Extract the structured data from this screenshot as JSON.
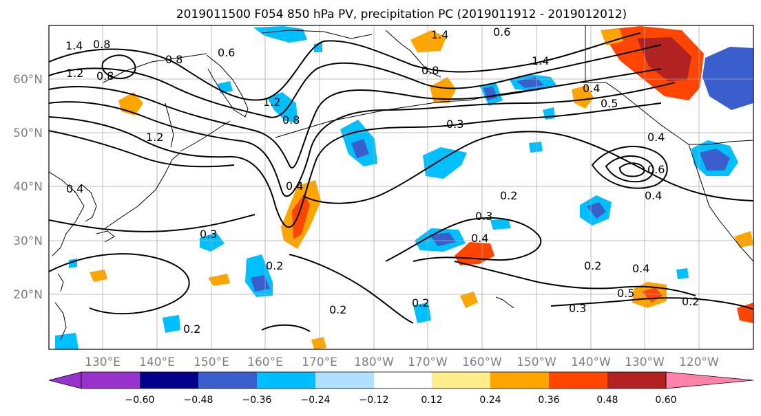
{
  "title": "2019011500 F054 850 hPa PV, precipitation PC (2019011912 - 2019012012)",
  "axes": {
    "lat_labels": [
      "60°N",
      "50°N",
      "40°N",
      "30°N",
      "20°N"
    ],
    "lon_labels": [
      "130°E",
      "140°E",
      "150°E",
      "160°E",
      "170°E",
      "180°W",
      "170°W",
      "160°W",
      "150°W",
      "140°W",
      "130°W",
      "120°W"
    ]
  },
  "colorbar": {
    "ticks": [
      "−0.60",
      "−0.48",
      "−0.36",
      "−0.24",
      "−0.12",
      "0.12",
      "0.24",
      "0.36",
      "0.48",
      "0.60"
    ],
    "colors": [
      "#9932CC",
      "#00008B",
      "#3A5FCD",
      "#00BFFF",
      "#B0E2FF",
      "#FFFFFF",
      "#FFEC8B",
      "#FFA500",
      "#FF4500",
      "#B22222",
      "#FF82AB"
    ]
  },
  "contour_labels": [
    "1.4",
    "0.8",
    "0.8",
    "0.6",
    "0.8",
    "1.2",
    "0.8",
    "1.2",
    "0.4",
    "1.2",
    "1.4",
    "0.6",
    "1.4",
    "0.8",
    "0.4",
    "0.3",
    "0.4",
    "0.5",
    "0.4",
    "0.6",
    "0.2",
    "0.3",
    "0.3",
    "0.4",
    "0.2",
    "0.2",
    "0.4",
    "0.5",
    "0.2",
    "0.2",
    "0.3",
    "0.2",
    "0.2",
    "0.4"
  ]
}
